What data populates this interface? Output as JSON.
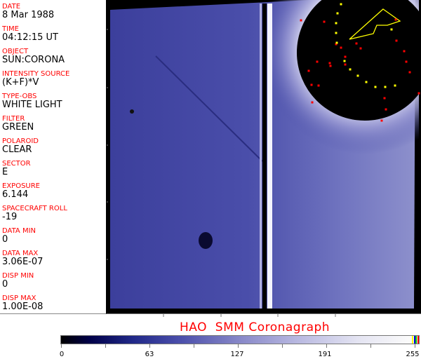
{
  "metadata_panel": {
    "fields": [
      {
        "label": "DATE",
        "value": "8 Mar 1988"
      },
      {
        "label": "TIME",
        "value": "04:12:15 UT"
      },
      {
        "label": "OBJECT",
        "value": "SUN:CORONA"
      },
      {
        "label": "INTENSITY SOURCE",
        "value": "(K+F)*V"
      },
      {
        "label": "TYPE-OBS",
        "value": "WHITE LIGHT"
      },
      {
        "label": "FILTER",
        "value": "GREEN"
      },
      {
        "label": "POLAROID",
        "value": "CLEAR"
      },
      {
        "label": "SECTOR",
        "value": "E"
      },
      {
        "label": "EXPOSURE",
        "value": "6.144"
      },
      {
        "label": "SPACECRAFT ROLL",
        "value": "-19"
      },
      {
        "label": "DATA MIN",
        "value": "0"
      },
      {
        "label": "DATA MAX",
        "value": "3.06E-07"
      },
      {
        "label": "DISP MIN",
        "value": "0"
      },
      {
        "label": "DISP MAX",
        "value": "1.00E-08"
      }
    ]
  },
  "title": "HAO  SMM Coronagraph",
  "colorbar": {
    "tick_labels": [
      "0",
      "63",
      "127",
      "191",
      "255"
    ],
    "colors": {
      "low": "#000000",
      "mid": "#4a4eaa",
      "high": "#fafafa"
    },
    "overlay_swatches": [
      "#ffff00",
      "#0000ff",
      "#00c000",
      "#ff0000"
    ]
  },
  "overlay_colors": {
    "markers_red": "#ff0000",
    "markers_yellow": "#ffff00"
  }
}
